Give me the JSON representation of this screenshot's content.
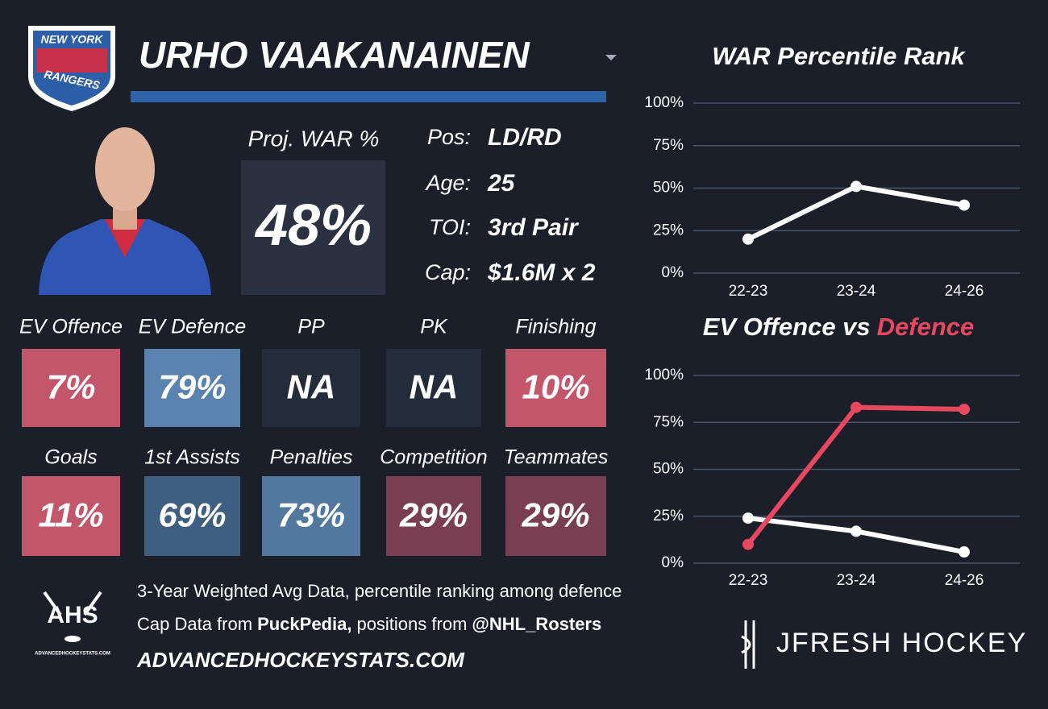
{
  "header": {
    "team_line1": "NEW YORK",
    "team_line2": "RANGERS",
    "player": "URHO VAAKANAINEN"
  },
  "proj_war": {
    "label": "Proj. WAR %",
    "value": "48%"
  },
  "info": [
    {
      "label": "Pos:",
      "value": "LD/RD"
    },
    {
      "label": "Age:",
      "value": "25"
    },
    {
      "label": "TOI:",
      "value": "3rd Pair"
    },
    {
      "label": "Cap:",
      "value": "$1.6M x 2"
    }
  ],
  "tiles": [
    {
      "label": "EV Offence",
      "value": "7%",
      "color": "#c4566b"
    },
    {
      "label": "EV Defence",
      "value": "79%",
      "color": "#5a82ae"
    },
    {
      "label": "PP",
      "value": "NA",
      "color": "#232c3a"
    },
    {
      "label": "PK",
      "value": "NA",
      "color": "#232c3a"
    },
    {
      "label": "Finishing",
      "value": "10%",
      "color": "#c4566b"
    },
    {
      "label": "Goals",
      "value": "11%",
      "color": "#c2566b"
    },
    {
      "label": "1st Assists",
      "value": "69%",
      "color": "#3f5f80"
    },
    {
      "label": "Penalties",
      "value": "73%",
      "color": "#52789f"
    },
    {
      "label": "Competition",
      "value": "29%",
      "color": "#7a3e53"
    },
    {
      "label": "Teammates",
      "value": "29%",
      "color": "#7a3e53"
    }
  ],
  "footer": {
    "line1": "3-Year Weighted Avg Data, percentile ranking among defence",
    "line2": [
      {
        "text": "Cap Data from",
        "bold": false
      },
      {
        "text": "PuckPedia,",
        "bold": true
      },
      {
        "text": "positions from",
        "bold": false
      },
      {
        "text": "@NHL_Rosters",
        "bold": true
      }
    ],
    "url": "ADVANCEDHOCKEYSTATS.COM",
    "ahs_logo": "AHS",
    "ahs_small": "ADVANCEDHOCKEYSTATS.COM",
    "brand": "JFRESH HOCKEY"
  },
  "chart_data": [
    {
      "type": "line",
      "title_parts": [
        {
          "text": "WAR Percentile Rank",
          "color": "#ffffff"
        }
      ],
      "categories": [
        "22-23",
        "23-24",
        "24-26"
      ],
      "series": [
        {
          "color": "#ffffff",
          "values": [
            20,
            51,
            40
          ]
        }
      ],
      "ylim": [
        0,
        100
      ],
      "yticks": [
        {
          "value": 0,
          "label": "0%"
        },
        {
          "value": 25,
          "label": "25%"
        },
        {
          "value": 50,
          "label": "50%"
        },
        {
          "value": 75,
          "label": "75%"
        },
        {
          "value": 100,
          "label": "100%"
        }
      ],
      "grid": true
    },
    {
      "type": "line",
      "title_parts": [
        {
          "text": "EV Offence vs",
          "color": "#ffffff"
        },
        {
          "text": "Defence",
          "color": "#e8485f"
        }
      ],
      "categories": [
        "22-23",
        "23-24",
        "24-26"
      ],
      "series": [
        {
          "color": "#ffffff",
          "values": [
            24,
            17,
            6
          ]
        },
        {
          "color": "#e8485f",
          "values": [
            10,
            83,
            82
          ]
        }
      ],
      "ylim": [
        0,
        100
      ],
      "yticks": [
        {
          "value": 0,
          "label": "0%"
        },
        {
          "value": 25,
          "label": "25%"
        },
        {
          "value": 50,
          "label": "50%"
        },
        {
          "value": 75,
          "label": "75%"
        },
        {
          "value": 100,
          "label": "100%"
        }
      ],
      "grid": true
    }
  ]
}
